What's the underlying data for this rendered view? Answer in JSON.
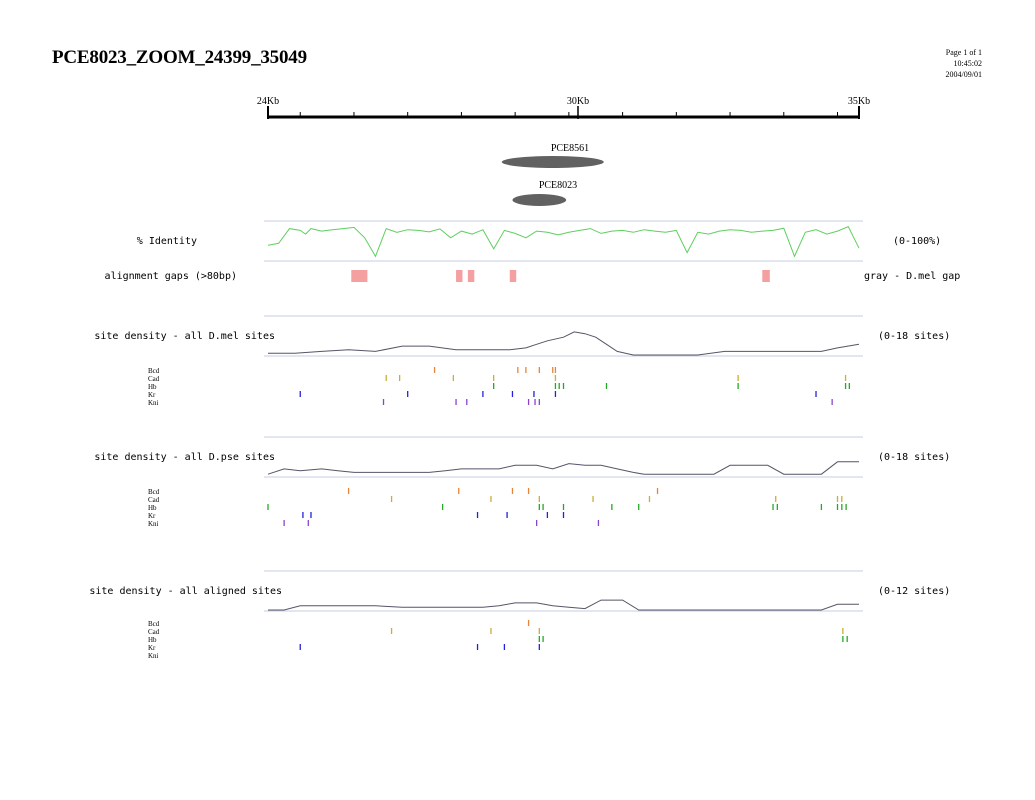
{
  "page": {
    "title": "PCE8023_ZOOM_24399_35049",
    "meta": [
      "Page 1 of 1",
      "10:45:02",
      "2004/09/01"
    ]
  },
  "axis": {
    "start_kb": 24,
    "end_kb": 35,
    "labeled_ticks": [
      {
        "label": "24Kb",
        "value": 24
      },
      {
        "label": "30Kb",
        "value": 30
      },
      {
        "label": "35Kb",
        "value": 35
      }
    ],
    "minor_ticks": [
      24.6,
      25.6,
      26.6,
      27.6,
      28.6,
      29.6,
      30.6,
      31.6,
      32.6,
      33.6,
      34.6
    ]
  },
  "features": [
    {
      "name": "PCE8561",
      "start_kb": 28.35,
      "end_kb": 30.25
    },
    {
      "name": "PCE8023",
      "start_kb": 28.55,
      "end_kb": 29.55
    }
  ],
  "chart_data": [
    {
      "type": "line",
      "label": "% Identity",
      "range_label": "(0-100%)",
      "ylim": [
        0,
        100
      ],
      "x": [
        24.0,
        24.2,
        24.4,
        24.6,
        24.7,
        24.8,
        25.0,
        25.2,
        25.4,
        25.6,
        25.8,
        26.0,
        26.2,
        26.4,
        26.6,
        26.8,
        27.0,
        27.2,
        27.4,
        27.6,
        27.8,
        28.0,
        28.2,
        28.4,
        28.6,
        28.8,
        29.0,
        29.2,
        29.4,
        29.6,
        29.8,
        30.0,
        30.2,
        30.4,
        30.6,
        30.8,
        31.0,
        31.2,
        31.4,
        31.6,
        31.8,
        32.0,
        32.2,
        32.4,
        32.6,
        32.8,
        33.0,
        33.2,
        33.4,
        33.6,
        33.8,
        34.0,
        34.2,
        34.4,
        34.6,
        34.8,
        35.0
      ],
      "y": [
        40,
        45,
        85,
        80,
        70,
        85,
        78,
        82,
        85,
        88,
        60,
        10,
        85,
        75,
        82,
        80,
        76,
        84,
        60,
        78,
        70,
        82,
        30,
        80,
        72,
        60,
        78,
        75,
        68,
        75,
        80,
        85,
        72,
        78,
        80,
        75,
        82,
        78,
        75,
        80,
        20,
        75,
        70,
        78,
        82,
        80,
        75,
        78,
        80,
        86,
        10,
        75,
        82,
        70,
        78,
        90,
        32
      ]
    },
    {
      "type": "line",
      "label": "site density - all D.mel sites",
      "range_label": "(0-18 sites)",
      "ylim": [
        0,
        18
      ],
      "x": [
        24.0,
        24.5,
        25.0,
        25.5,
        26.0,
        26.5,
        27.0,
        27.5,
        28.0,
        28.5,
        28.8,
        29.0,
        29.2,
        29.5,
        29.7,
        29.9,
        30.1,
        30.3,
        30.5,
        30.8,
        31.0,
        31.5,
        32.0,
        32.5,
        33.0,
        33.5,
        34.0,
        34.3,
        34.6,
        35.0
      ],
      "y": [
        1,
        1,
        2,
        3,
        2,
        5,
        5,
        3,
        3,
        3,
        4,
        6,
        8,
        10,
        13,
        12,
        10,
        6,
        2,
        0,
        0,
        0,
        0,
        2,
        2,
        2,
        2,
        2,
        4,
        6
      ]
    },
    {
      "type": "line",
      "label": "site density - all D.pse sites",
      "range_label": "(0-18 sites)",
      "ylim": [
        0,
        18
      ],
      "x": [
        24.0,
        24.3,
        24.6,
        25.0,
        25.3,
        25.6,
        26.0,
        26.5,
        27.0,
        27.3,
        27.6,
        28.0,
        28.3,
        28.6,
        29.0,
        29.3,
        29.6,
        29.9,
        30.2,
        30.5,
        30.8,
        31.0,
        31.5,
        32.0,
        32.3,
        32.6,
        33.0,
        33.3,
        33.6,
        34.0,
        34.3,
        34.6,
        35.0
      ],
      "y": [
        1,
        4,
        3,
        4,
        3,
        2,
        2,
        2,
        2,
        3,
        4,
        4,
        4,
        6,
        6,
        4,
        7,
        6,
        6,
        4,
        2,
        1,
        1,
        1,
        1,
        6,
        6,
        6,
        1,
        1,
        1,
        8,
        8
      ]
    },
    {
      "type": "line",
      "label": "site density - all aligned sites",
      "range_label": "(0-12 sites)",
      "ylim": [
        0,
        12
      ],
      "x": [
        24.0,
        24.3,
        24.6,
        25.0,
        25.5,
        26.0,
        26.5,
        27.0,
        27.5,
        28.0,
        28.3,
        28.6,
        29.0,
        29.3,
        29.6,
        29.9,
        30.2,
        30.6,
        30.9,
        31.2,
        31.8,
        32.5,
        33.0,
        33.5,
        34.0,
        34.3,
        34.6,
        35.0
      ],
      "y": [
        0,
        0,
        3,
        3,
        3,
        3,
        2,
        2,
        2,
        2,
        3,
        5,
        5,
        3,
        2,
        1,
        7,
        7,
        0,
        0,
        0,
        0,
        0,
        0,
        0,
        0,
        4,
        4
      ]
    }
  ],
  "identity_panel": {
    "gaps_label": "alignment gaps (>80bp)",
    "gaps_legend": "gray - D.mel gap",
    "gaps": [
      [
        25.55,
        25.85
      ],
      [
        27.5,
        27.62
      ],
      [
        27.72,
        27.84
      ],
      [
        28.5,
        28.62
      ],
      [
        33.2,
        33.34
      ]
    ]
  },
  "factors": [
    "Bcd",
    "Cad",
    "Hb",
    "Kr",
    "Kni"
  ],
  "factor_colors": {
    "Bcd": "#e8843a",
    "Cad": "#c8b030",
    "Hb": "#22aa22",
    "Kr": "#2222dd",
    "Kni": "#8844cc"
  },
  "site_tracks": [
    {
      "name": "D.mel",
      "sites": {
        "Bcd": [
          27.1,
          28.65,
          28.8,
          29.05,
          29.3,
          29.35
        ],
        "Cad": [
          26.2,
          26.45,
          27.45,
          28.2,
          29.35,
          32.75,
          34.75
        ],
        "Hb": [
          28.2,
          29.35,
          29.42,
          29.5,
          30.3,
          32.75,
          34.75,
          34.82
        ],
        "Kr": [
          24.6,
          26.6,
          28.0,
          28.55,
          28.95,
          29.35,
          34.2
        ],
        "Kni": [
          26.15,
          27.5,
          27.7,
          28.85,
          28.97,
          29.05,
          34.5
        ]
      }
    },
    {
      "name": "D.pse",
      "sites": {
        "Bcd": [
          25.5,
          27.55,
          28.55,
          28.85,
          31.25
        ],
        "Cad": [
          26.3,
          28.15,
          29.05,
          30.05,
          31.1,
          33.45,
          34.6,
          34.68
        ],
        "Hb": [
          24.0,
          27.25,
          29.05,
          29.12,
          29.5,
          30.4,
          30.9,
          33.4,
          33.48,
          34.3,
          34.6,
          34.68,
          34.76
        ],
        "Kr": [
          24.65,
          24.8,
          27.9,
          28.45,
          29.2,
          29.5
        ],
        "Kni": [
          24.3,
          24.75,
          29.0,
          30.15
        ]
      }
    },
    {
      "name": "aligned",
      "sites": {
        "Bcd": [
          28.85
        ],
        "Cad": [
          26.3,
          28.15,
          29.05,
          34.7
        ],
        "Hb": [
          29.05,
          29.12,
          34.7,
          34.78
        ],
        "Kr": [
          24.6,
          27.9,
          28.4,
          29.05
        ],
        "Kni": []
      }
    }
  ]
}
